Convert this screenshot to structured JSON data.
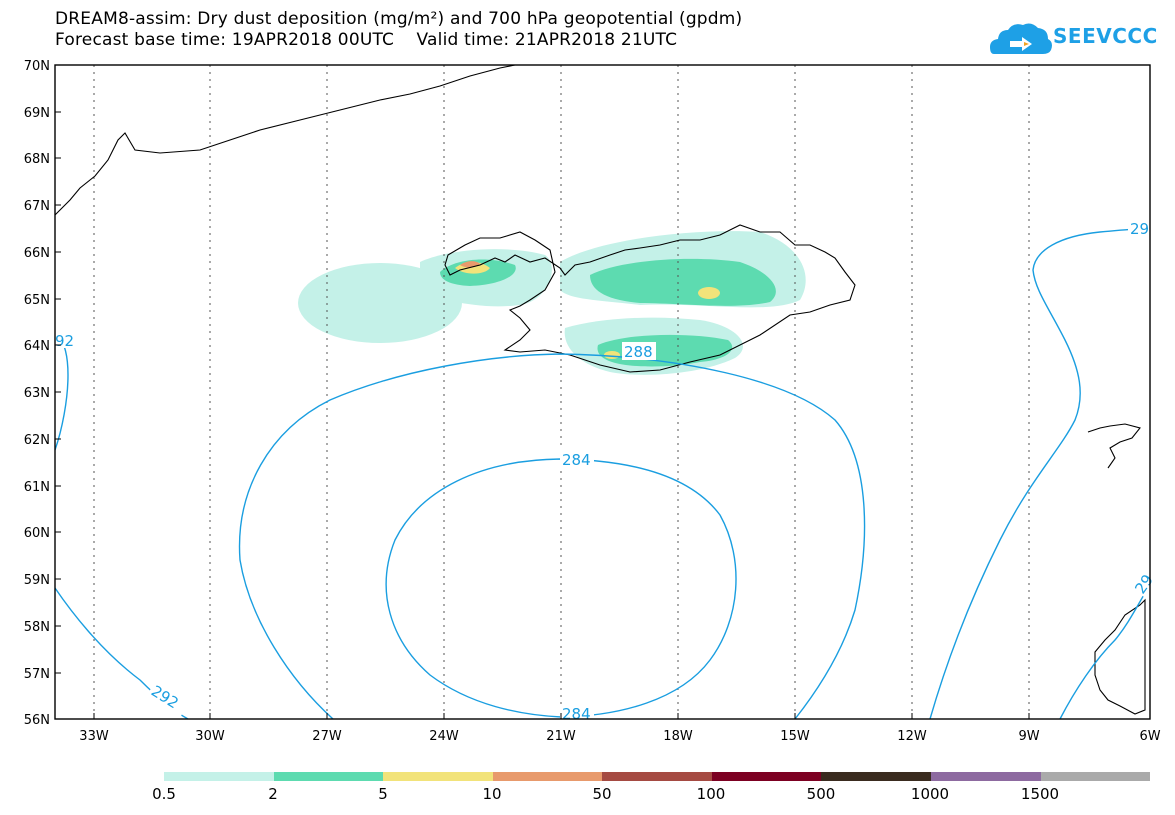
{
  "header": {
    "title_line1": "DREAM8-assim: Dry dust deposition (mg/m²) and 700 hPa geopotential (gpdm)",
    "title_line2": "Forecast base time: 19APR2018 00UTC    Valid time: 21APR2018 21UTC"
  },
  "logo": {
    "text": "SEEVCCC",
    "icon": "cloud-arrow-icon",
    "color": "#1ea0e6"
  },
  "map": {
    "lat_labels": [
      "70N",
      "69N",
      "68N",
      "67N",
      "66N",
      "65N",
      "64N",
      "63N",
      "62N",
      "61N",
      "60N",
      "59N",
      "58N",
      "57N",
      "56N"
    ],
    "lon_labels": [
      "33W",
      "30W",
      "27W",
      "24W",
      "21W",
      "18W",
      "15W",
      "12W",
      "9W",
      "6W"
    ],
    "contour_color": "#1a9ee0",
    "contour_labels": [
      "292",
      "288",
      "284",
      "284",
      "292",
      "29",
      "29",
      "92"
    ]
  },
  "colorbar": {
    "colors": [
      "#c4f1e8",
      "#5ddbb0",
      "#f2e37a",
      "#e89a6c",
      "#a54a42",
      "#7c0022",
      "#3a2b1f",
      "#8d6aa0",
      "#aaaaaa"
    ],
    "labels": [
      "0.5",
      "2",
      "5",
      "10",
      "50",
      "100",
      "500",
      "1000",
      "1500"
    ]
  }
}
